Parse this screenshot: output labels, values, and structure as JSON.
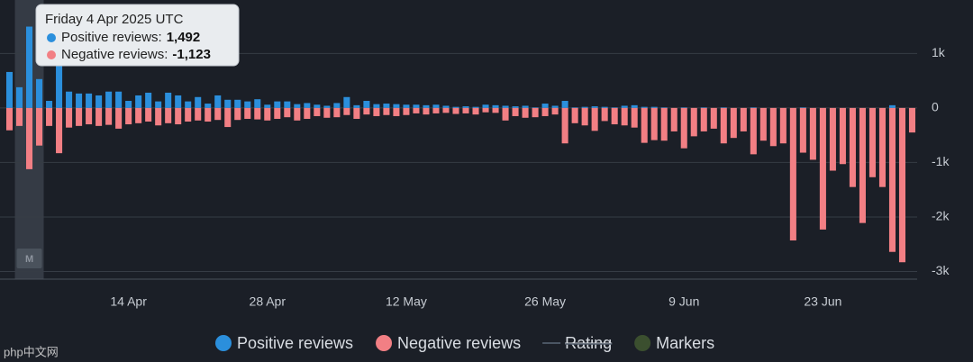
{
  "chart_data": {
    "type": "bar",
    "categories": [
      null,
      null,
      null,
      null,
      null,
      null,
      null,
      null,
      null,
      null,
      null,
      null,
      "14 Apr",
      null,
      null,
      null,
      null,
      null,
      null,
      null,
      null,
      null,
      null,
      null,
      null,
      null,
      "28 Apr",
      null,
      null,
      null,
      null,
      null,
      null,
      null,
      null,
      null,
      null,
      null,
      null,
      null,
      "12 May",
      null,
      null,
      null,
      null,
      null,
      null,
      null,
      null,
      null,
      null,
      null,
      null,
      null,
      "26 May",
      null,
      null,
      null,
      null,
      null,
      null,
      null,
      null,
      null,
      null,
      null,
      null,
      null,
      "9 Jun",
      null,
      null,
      null,
      null,
      null,
      null,
      null,
      null,
      null,
      null,
      null,
      null,
      null,
      "23 Jun",
      null,
      null,
      null,
      null,
      null,
      null,
      null,
      null,
      null
    ],
    "series": [
      {
        "name": "Positive reviews",
        "color": "#2b8fdc",
        "values": [
          660,
          380,
          1492,
          530,
          130,
          860,
          300,
          265,
          265,
          230,
          300,
          300,
          130,
          230,
          280,
          120,
          280,
          230,
          120,
          200,
          80,
          230,
          150,
          150,
          120,
          160,
          60,
          120,
          120,
          70,
          90,
          60,
          40,
          90,
          200,
          50,
          130,
          70,
          80,
          70,
          60,
          60,
          50,
          60,
          40,
          20,
          30,
          20,
          60,
          50,
          40,
          30,
          40,
          10,
          80,
          40,
          130,
          10,
          20,
          30,
          20,
          10,
          40,
          50,
          20,
          20,
          10,
          0,
          10,
          0,
          10,
          0,
          10,
          0,
          0,
          10,
          0,
          0,
          0,
          0,
          10,
          0,
          0,
          0,
          0,
          0,
          0,
          0,
          0,
          50,
          0,
          0
        ],
        "value_labels": [
          null,
          null,
          "1,492",
          null,
          null,
          null,
          null,
          null,
          null,
          null,
          null,
          null,
          null,
          null,
          null,
          null,
          null,
          null,
          null,
          null,
          null,
          null,
          null,
          null,
          null,
          null,
          null,
          null,
          null,
          null,
          null,
          null,
          null,
          null,
          null,
          null,
          null,
          null,
          null,
          null,
          null,
          null,
          null,
          null,
          null,
          null,
          null,
          null,
          null,
          null,
          null,
          null,
          null,
          null,
          null,
          null,
          null,
          null,
          null,
          null,
          null,
          null,
          null,
          null,
          null,
          null,
          null,
          null,
          null,
          null,
          null,
          null,
          null,
          null,
          null,
          null,
          null,
          null,
          null,
          null,
          null,
          null,
          null,
          null,
          null,
          null,
          null,
          null,
          null,
          null,
          null,
          null
        ]
      },
      {
        "name": "Negative reviews",
        "color": "#f27f84",
        "values": [
          -410,
          -330,
          -1123,
          -690,
          -330,
          -830,
          -360,
          -330,
          -300,
          -330,
          -310,
          -380,
          -300,
          -280,
          -250,
          -320,
          -280,
          -300,
          -250,
          -230,
          -250,
          -220,
          -350,
          -220,
          -200,
          -210,
          -230,
          -200,
          -170,
          -230,
          -200,
          -150,
          -180,
          -170,
          -130,
          -200,
          -120,
          -150,
          -130,
          -150,
          -130,
          -100,
          -120,
          -100,
          -90,
          -110,
          -100,
          -120,
          -80,
          -90,
          -230,
          -150,
          -180,
          -170,
          -150,
          -120,
          -650,
          -280,
          -320,
          -420,
          -240,
          -300,
          -320,
          -360,
          -640,
          -590,
          -600,
          -430,
          -740,
          -520,
          -430,
          -380,
          -650,
          -550,
          -430,
          -850,
          -600,
          -700,
          -650,
          -2430,
          -820,
          -950,
          -2230,
          -1150,
          -1030,
          -1450,
          -2110,
          -1270,
          -1450,
          -2640,
          -2830,
          -450
        ],
        "value_labels": [
          null,
          null,
          "-1,123",
          null,
          null,
          null,
          null,
          null,
          null,
          null,
          null,
          null,
          null,
          null,
          null,
          null,
          null,
          null,
          null,
          null,
          null,
          null,
          null,
          null,
          null,
          null,
          null,
          null,
          null,
          null,
          null,
          null,
          null,
          null,
          null,
          null,
          null,
          null,
          null,
          null,
          null,
          null,
          null,
          null,
          null,
          null,
          null,
          null,
          null,
          null,
          null,
          null,
          null,
          null,
          null,
          null,
          null,
          null,
          null,
          null,
          null,
          null,
          null,
          null,
          null,
          null,
          null,
          null,
          null,
          null,
          null,
          null,
          null,
          null,
          null,
          null,
          null,
          null,
          null,
          null,
          null,
          null,
          null,
          null,
          null,
          null,
          null,
          null,
          null,
          null,
          null,
          null
        ]
      }
    ],
    "ylim": [
      -3140,
      1980
    ],
    "yticks": [
      {
        "value": 1000,
        "label": "1k"
      },
      0,
      {
        "value": -1000,
        "label": "-1k"
      },
      {
        "value": -2000,
        "label": "-2k"
      },
      {
        "value": -3000,
        "label": "-3k"
      }
    ],
    "grid": true,
    "tooltip": {
      "title": "Friday 4 Apr 2025 UTC",
      "labels": [
        "Positive reviews:",
        "Negative reviews:"
      ]
    },
    "markers": [
      {
        "label": "M"
      }
    ],
    "legend_extra": [
      {
        "name": "Rating",
        "color": "#4a5563",
        "hidden": true,
        "symbol": "line"
      },
      {
        "name": "Markers",
        "color": "#3b4f2f",
        "symbol": "circle"
      }
    ],
    "watermark": "php中文网"
  }
}
